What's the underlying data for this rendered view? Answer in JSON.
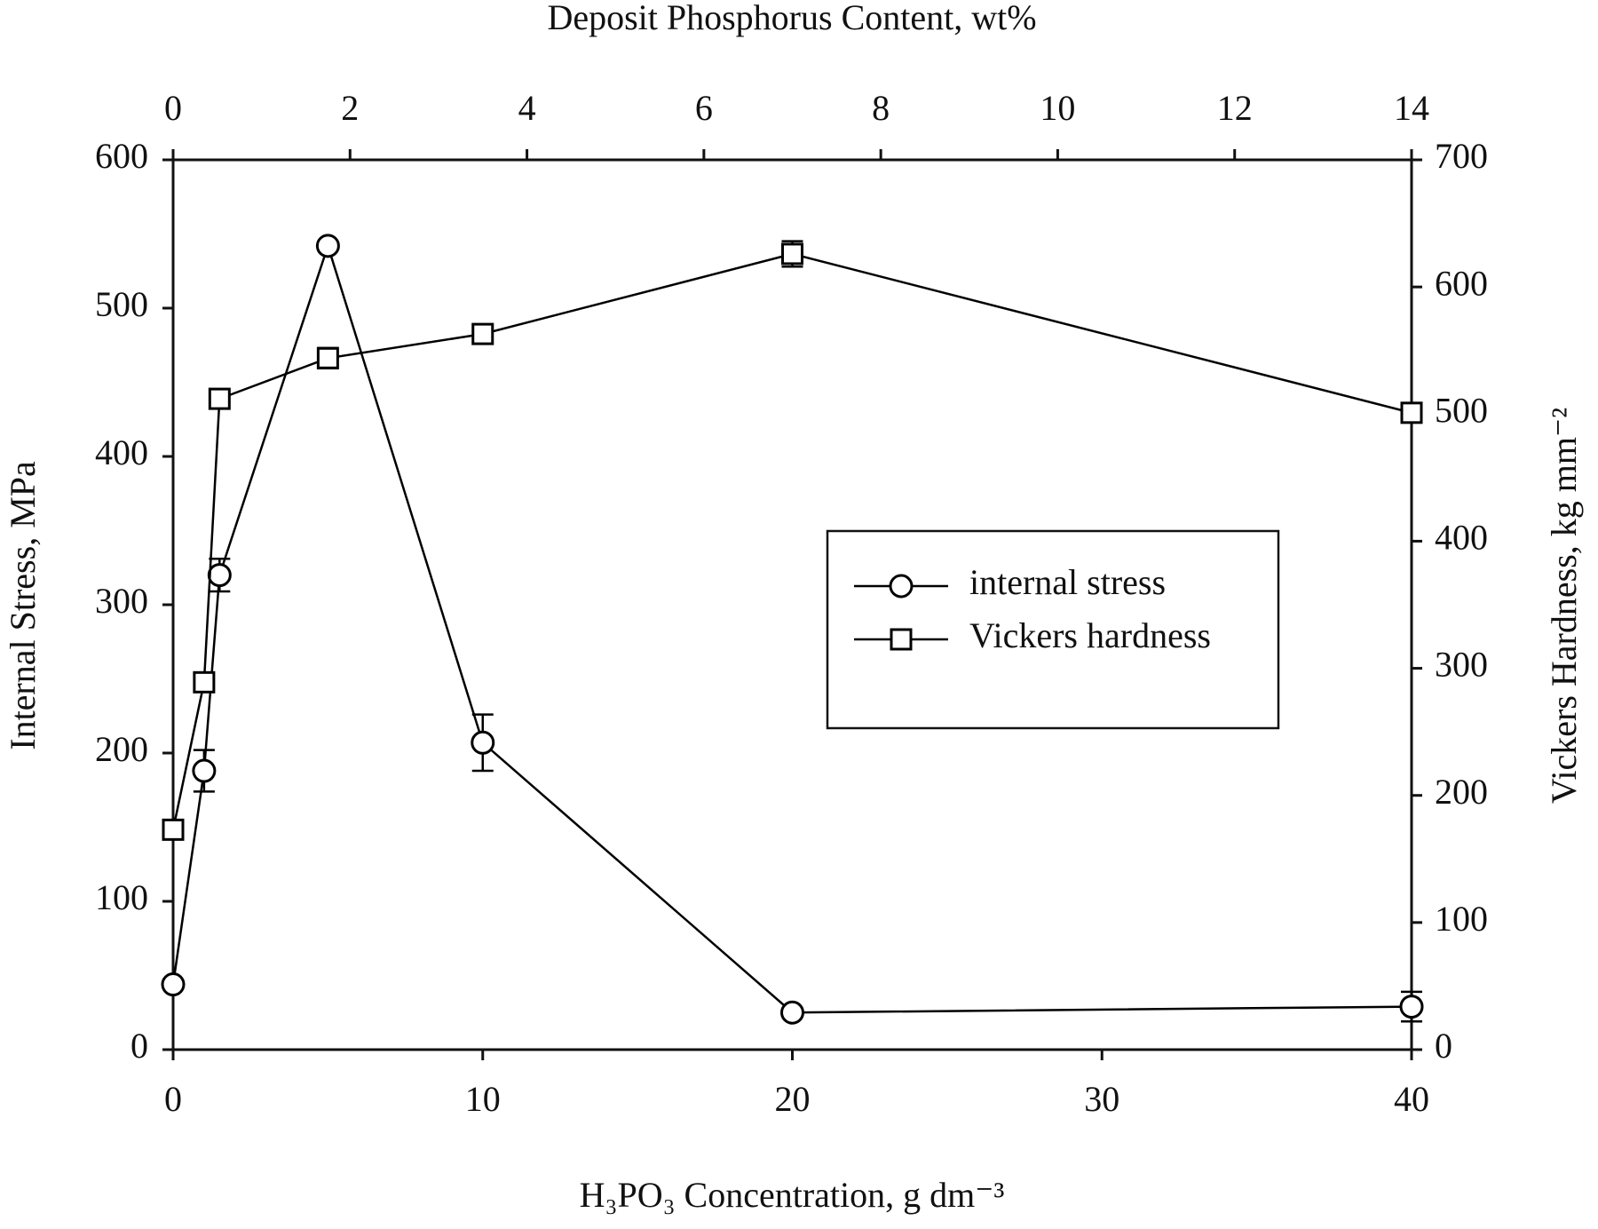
{
  "chart_data": {
    "type": "line",
    "title": "Deposit Phosphorus Content, wt%",
    "x_label": "H₃PO₃ Concentration, g dm⁻³",
    "y_label": "Internal Stress, MPa",
    "y2_label": "Vickers Hardness, kg mm⁻²",
    "xlim": [
      0,
      40
    ],
    "xticks": [
      0,
      10,
      20,
      30,
      40
    ],
    "x2lim": [
      0,
      14
    ],
    "x2ticks": [
      0,
      2,
      4,
      6,
      8,
      10,
      12,
      14
    ],
    "ylim": [
      0,
      600
    ],
    "yticks": [
      0,
      100,
      200,
      300,
      400,
      500,
      600
    ],
    "y2lim": [
      0,
      700
    ],
    "y2ticks": [
      0,
      100,
      200,
      300,
      400,
      500,
      600,
      700
    ],
    "legend_position": "right",
    "series": [
      {
        "name": "internal stress",
        "color": "#000000",
        "marker": "circle",
        "x": [
          0,
          1,
          1.5,
          5,
          10,
          20,
          40
        ],
        "values": [
          44,
          188,
          320,
          542,
          207,
          25,
          29
        ],
        "errors": [
          null,
          14,
          11,
          null,
          19,
          null,
          10
        ]
      },
      {
        "name": "Vickers hardness",
        "color": "#000000",
        "marker": "square",
        "axis": "y2",
        "x": [
          0,
          1,
          1.5,
          5,
          10,
          20,
          40
        ],
        "values": [
          173,
          289,
          512,
          544,
          563,
          626,
          501
        ],
        "errors": [
          null,
          null,
          null,
          8,
          null,
          10,
          null
        ]
      }
    ]
  }
}
